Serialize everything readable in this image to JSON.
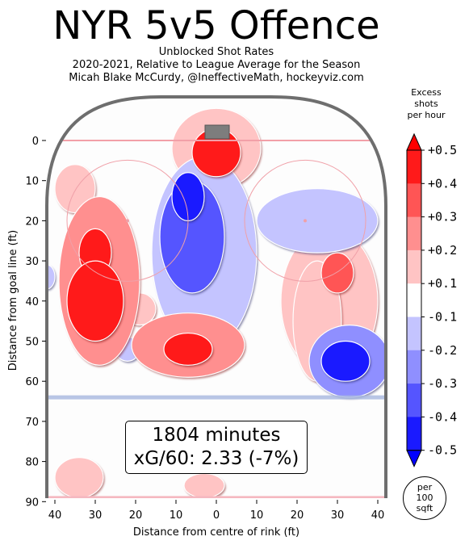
{
  "header": {
    "title": "NYR 5v5 Offence",
    "subtitle_1": "Unblocked Shot Rates",
    "subtitle_2": "2020-2021, Relative to League Average for the Season",
    "subtitle_3": "Micah Blake McCurdy, @IneffectiveMath, hockeyviz.com"
  },
  "summary": {
    "minutes": "1804 minutes",
    "xg": "xG/60: 2.33 (-7%)"
  },
  "units": {
    "l1": "per",
    "l2": "100",
    "l3": "sqft"
  },
  "colorbar": {
    "title_1": "Excess",
    "title_2": "shots",
    "title_3": "per hour",
    "labels": [
      "+0.5",
      "+0.4",
      "+0.3",
      "+0.2",
      "+0.1",
      "-0.1",
      "-0.2",
      "-0.3",
      "-0.4",
      "-0.5"
    ],
    "colors": [
      "#ff1a1a",
      "#ff5555",
      "#ff8f8f",
      "#ffc4c4",
      "#ffffff",
      "#c4c4ff",
      "#8f8fff",
      "#5555ff",
      "#1a1aff"
    ]
  },
  "chart_data": {
    "type": "heatmap",
    "title": "NYR 5v5 Offence",
    "xlabel": "Distance from centre of rink (ft)",
    "ylabel": "Distance from goal line (ft)",
    "xlim": [
      -42,
      42
    ],
    "ylim": [
      90,
      -10
    ],
    "x_ticks": [
      -40,
      -30,
      -20,
      -10,
      0,
      10,
      20,
      30,
      40
    ],
    "x_tick_labels": [
      "40",
      "30",
      "20",
      "10",
      "0",
      "10",
      "20",
      "30",
      "40"
    ],
    "y_ticks": [
      0,
      10,
      20,
      30,
      40,
      50,
      60,
      70,
      80,
      90
    ],
    "y_tick_labels": [
      "0",
      "10",
      "20",
      "30",
      "40",
      "50",
      "60",
      "70",
      "80",
      "90"
    ],
    "blobs": [
      {
        "x": -30,
        "y": 40,
        "rx": 7,
        "ry": 10,
        "value": 0.5
      },
      {
        "x": -30,
        "y": 28,
        "rx": 4,
        "ry": 6,
        "value": 0.4
      },
      {
        "x": -29,
        "y": 35,
        "rx": 10,
        "ry": 21,
        "value": 0.2
      },
      {
        "x": -35,
        "y": 12,
        "rx": 5,
        "ry": 6,
        "value": 0.15
      },
      {
        "x": -19,
        "y": 42,
        "rx": 4,
        "ry": 4,
        "value": 0.15
      },
      {
        "x": 0,
        "y": 3,
        "rx": 6,
        "ry": 6,
        "value": 0.4
      },
      {
        "x": 0,
        "y": 2,
        "rx": 11,
        "ry": 10,
        "value": 0.15
      },
      {
        "x": -7,
        "y": 52,
        "rx": 6,
        "ry": 4,
        "value": 0.5
      },
      {
        "x": -7,
        "y": 51,
        "rx": 14,
        "ry": 8,
        "value": 0.2
      },
      {
        "x": 25,
        "y": 45,
        "rx": 6,
        "ry": 15,
        "value": 0.15
      },
      {
        "x": 30,
        "y": 33,
        "rx": 4,
        "ry": 5,
        "value": 0.3
      },
      {
        "x": 28,
        "y": 40,
        "rx": 12,
        "ry": 18,
        "value": 0.12
      },
      {
        "x": -34,
        "y": 84,
        "rx": 6,
        "ry": 5,
        "value": 0.15
      },
      {
        "x": -3,
        "y": 86,
        "rx": 5,
        "ry": 3,
        "value": 0.15
      },
      {
        "x": -7,
        "y": 14,
        "rx": 4,
        "ry": 6,
        "value": -0.5
      },
      {
        "x": -6,
        "y": 24,
        "rx": 8,
        "ry": 14,
        "value": -0.35
      },
      {
        "x": -3,
        "y": 28,
        "rx": 13,
        "ry": 24,
        "value": -0.15
      },
      {
        "x": 32,
        "y": 55,
        "rx": 6,
        "ry": 5,
        "value": -0.4
      },
      {
        "x": 33,
        "y": 55,
        "rx": 10,
        "ry": 9,
        "value": -0.2
      },
      {
        "x": 25,
        "y": 20,
        "rx": 15,
        "ry": 8,
        "value": -0.12
      },
      {
        "x": -42,
        "y": 34,
        "rx": 2,
        "ry": 3,
        "value": -0.15
      },
      {
        "x": -22,
        "y": 52,
        "rx": 3,
        "ry": 3,
        "value": -0.15
      }
    ]
  }
}
